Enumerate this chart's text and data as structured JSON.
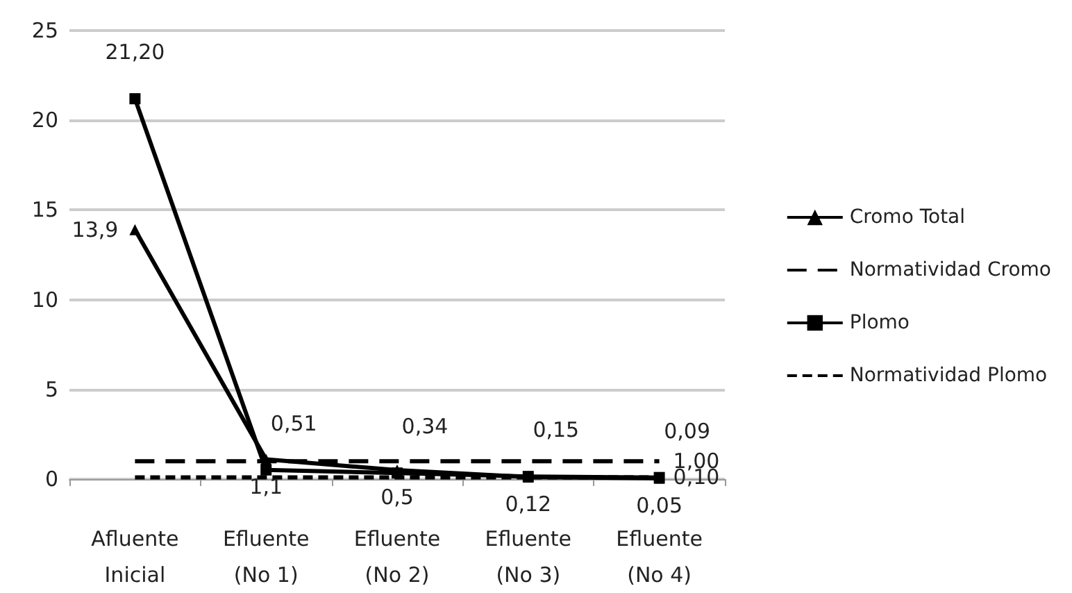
{
  "chart_data": {
    "type": "line",
    "categories": [
      "Afluente\nInicial",
      "Efluente\n(No 1)",
      "Efluente\n(No 2)",
      "Efluente\n(No 3)",
      "Efluente\n(No 4)"
    ],
    "series": [
      {
        "name": "Cromo Total",
        "color": "#000000",
        "marker": "triangle",
        "line_style": "solid",
        "values": [
          13.9,
          1.1,
          0.5,
          0.12,
          0.05
        ],
        "value_labels": [
          "13,9",
          "1,1",
          "0,5",
          "0,12",
          "0,05"
        ]
      },
      {
        "name": "Normatividad Cromo",
        "color": "#000000",
        "marker": "none",
        "line_style": "dashed",
        "values": [
          1,
          1,
          1,
          1,
          1
        ],
        "value_labels": [
          null,
          null,
          null,
          null,
          "1,00"
        ]
      },
      {
        "name": "Plomo",
        "color": "#000000",
        "marker": "square",
        "line_style": "solid",
        "values": [
          21.2,
          0.51,
          0.34,
          0.15,
          0.09
        ],
        "value_labels": [
          "21,20",
          "0,51",
          "0,34",
          "0,15",
          "0,09"
        ]
      },
      {
        "name": "Normatividad Plomo",
        "color": "#000000",
        "marker": "none",
        "line_style": "dotted",
        "values": [
          0.1,
          0.1,
          0.1,
          0.1,
          0.1
        ],
        "value_labels": [
          null,
          null,
          null,
          null,
          "0,10"
        ]
      }
    ],
    "ylim": [
      0,
      25
    ],
    "yticks": [
      0,
      5,
      10,
      15,
      20,
      25
    ],
    "grid": "y",
    "legend": "right"
  }
}
